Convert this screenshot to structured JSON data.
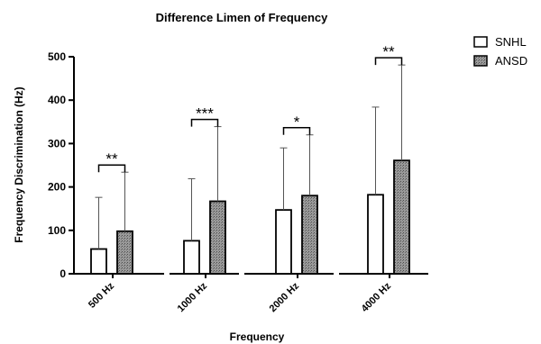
{
  "chart_data": {
    "type": "bar",
    "title": "Difference Limen of Frequency",
    "xlabel": "Frequency",
    "ylabel": "Frequency Discrimination (Hz)",
    "ylim": [
      0,
      500
    ],
    "yticks": [
      "0",
      "100",
      "200",
      "300",
      "400",
      "500"
    ],
    "categories": [
      "500 Hz",
      "1000 Hz",
      "2000 Hz",
      "4000 Hz"
    ],
    "legend_position": "top-right",
    "grid": false,
    "series": [
      {
        "name": "SNHL",
        "fill": "#ffffff",
        "values": [
          57,
          76,
          147,
          182
        ],
        "error_upper": [
          176,
          219,
          290,
          384
        ]
      },
      {
        "name": "ANSD",
        "fill": "#8c8c8c",
        "values": [
          98,
          167,
          180,
          261
        ],
        "error_upper": [
          234,
          339,
          320,
          481
        ]
      }
    ],
    "significance": [
      "**",
      "***",
      "*",
      "**"
    ]
  }
}
